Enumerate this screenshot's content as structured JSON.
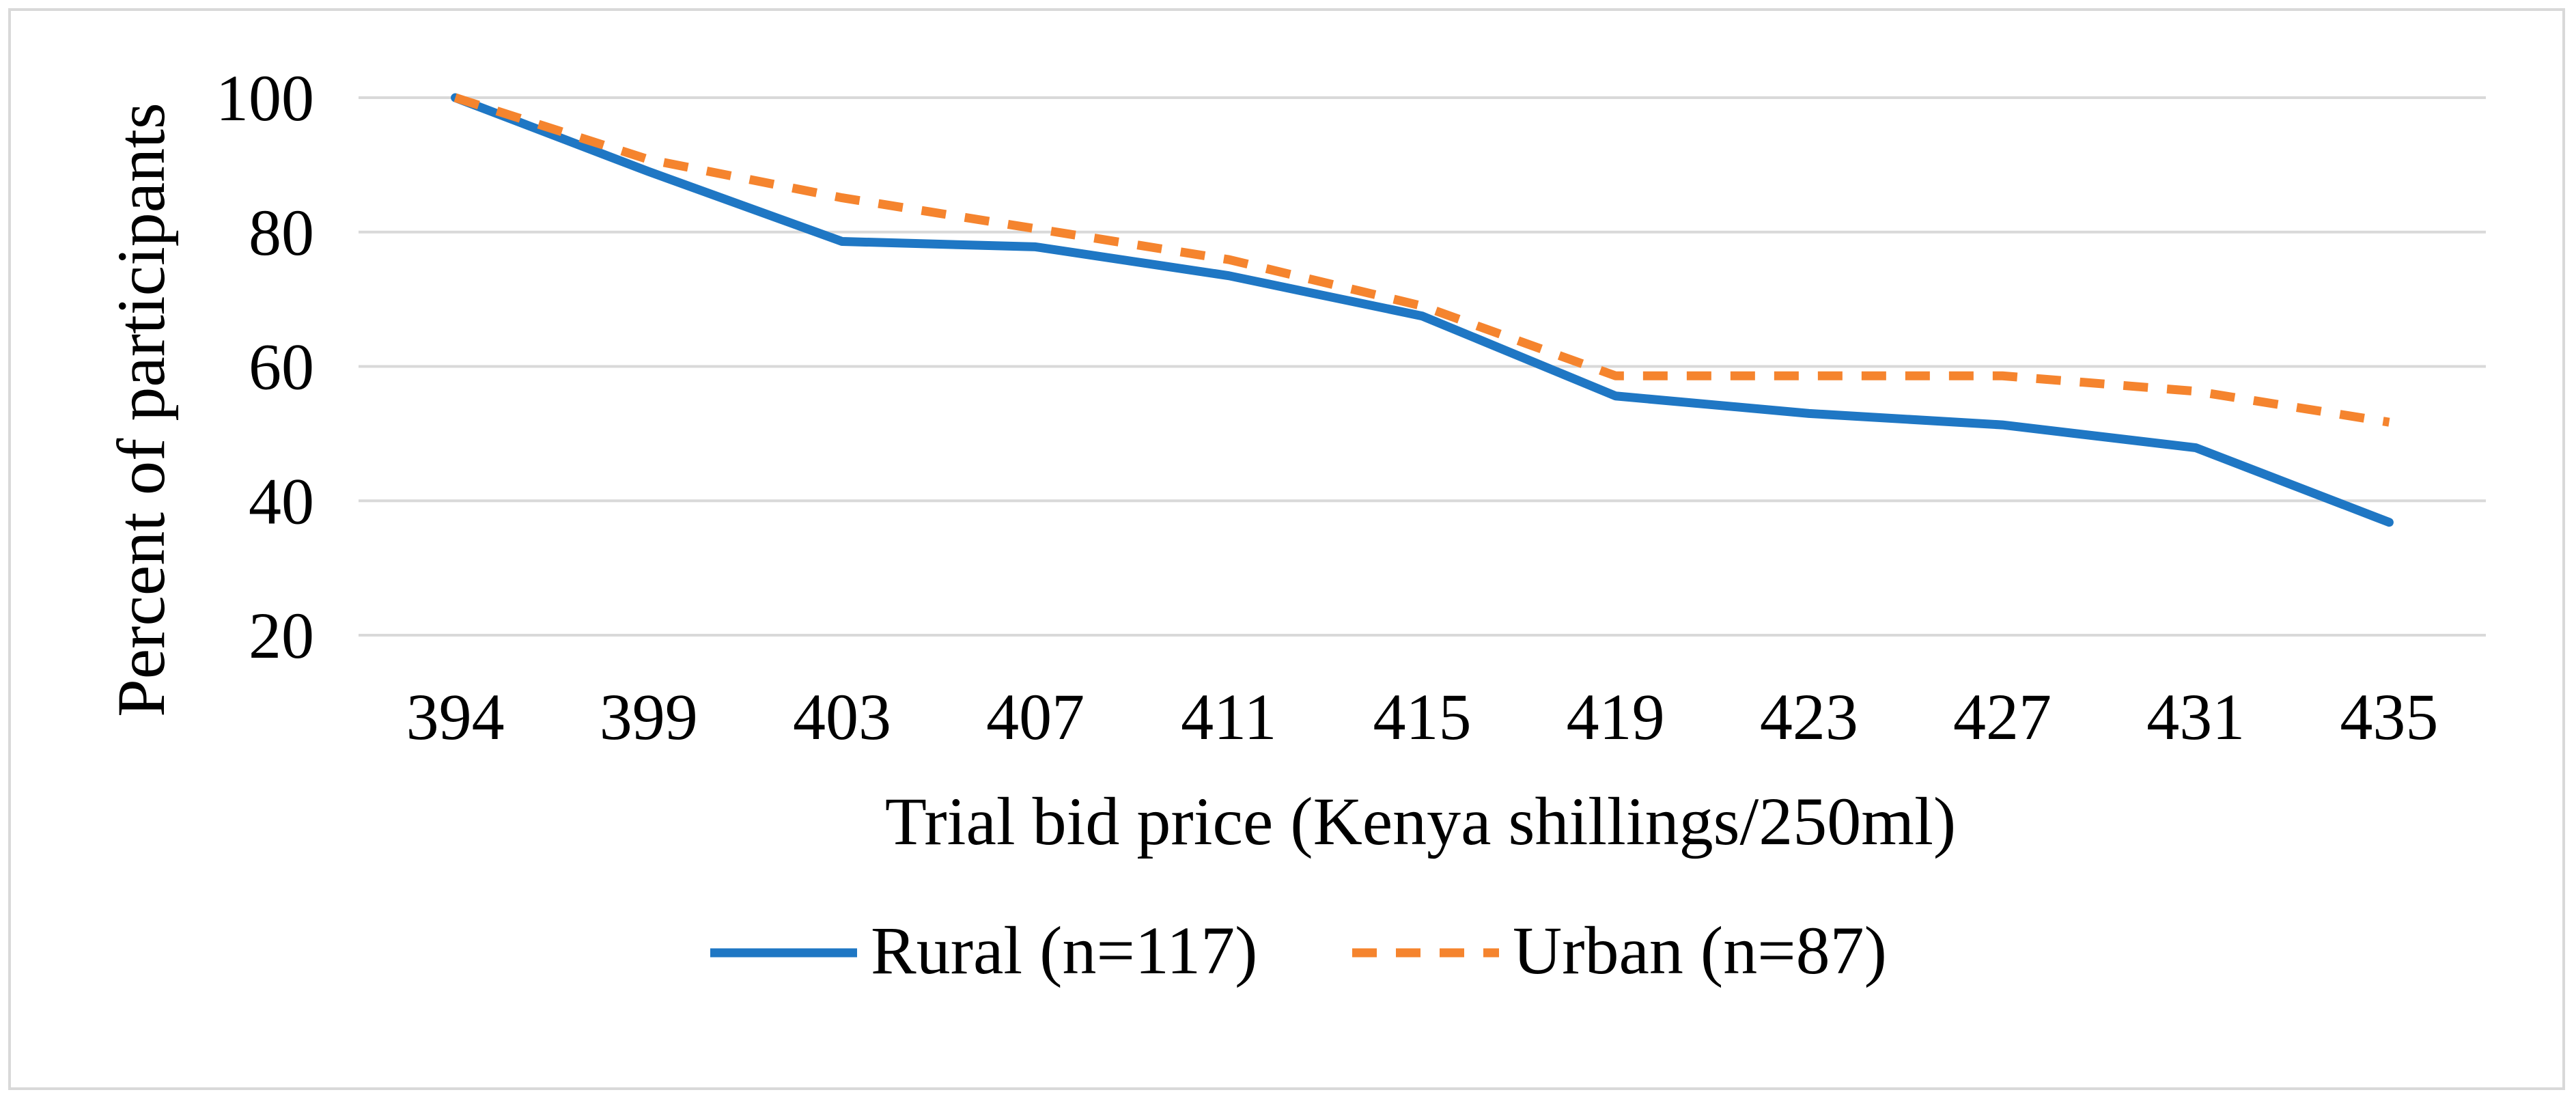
{
  "chart_data": {
    "type": "line",
    "title": "",
    "xlabel": "Trial bid price (Kenya shillings/250ml)",
    "ylabel": "Percent of participants",
    "categories": [
      "394",
      "399",
      "403",
      "407",
      "411",
      "415",
      "419",
      "423",
      "427",
      "431",
      "435"
    ],
    "ylim": [
      20,
      100
    ],
    "yticks": [
      20,
      40,
      60,
      80,
      100
    ],
    "grid": true,
    "legend_position": "bottom",
    "series": [
      {
        "name": "Rural (n=117)",
        "color": "#1f77c4",
        "style": "solid",
        "values": [
          100,
          89,
          78.6,
          77.8,
          73.5,
          67.5,
          55.6,
          53,
          51.3,
          47.9,
          36.8
        ]
      },
      {
        "name": "Urban (n=87)",
        "color": "#f5842e",
        "style": "dashed",
        "values": [
          100,
          90.8,
          85.1,
          80.5,
          75.9,
          69,
          58.6,
          58.6,
          58.6,
          56.3,
          51.7
        ]
      }
    ]
  }
}
